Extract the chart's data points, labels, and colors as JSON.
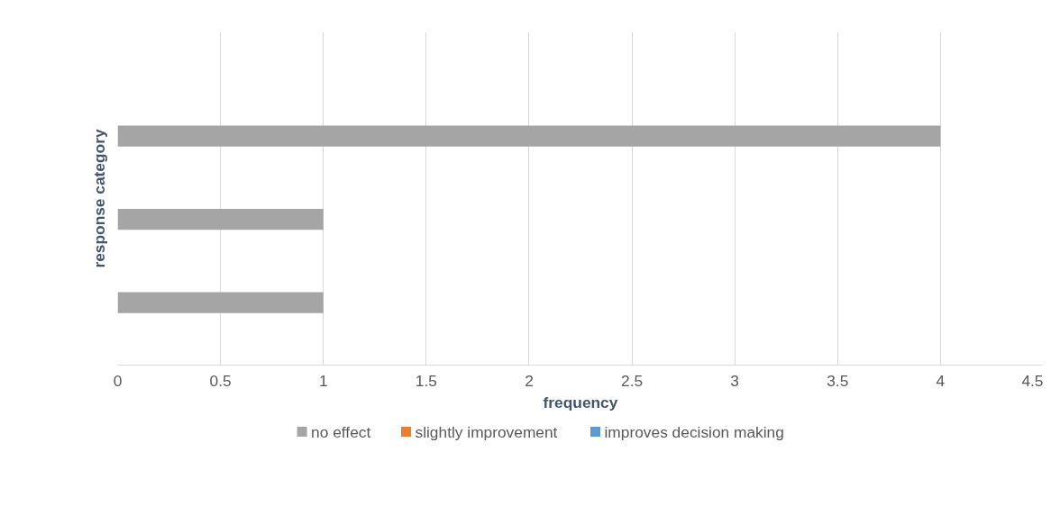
{
  "chart_data": {
    "type": "bar",
    "orientation": "horizontal",
    "xlabel": "frequency",
    "ylabel": "response category",
    "categories": [
      null,
      null,
      null
    ],
    "series": [
      {
        "name": "no effect",
        "color": "#a5a5a5",
        "values": [
          4,
          1,
          1
        ]
      },
      {
        "name": "slightly improvement",
        "color": "#ed7d31",
        "values": [
          0,
          0,
          0
        ]
      },
      {
        "name": "improves decision making",
        "color": "#5b9bd5",
        "values": [
          0,
          0,
          0
        ]
      }
    ],
    "xlim": [
      0,
      4.5
    ],
    "xticks": [
      0,
      0.5,
      1,
      1.5,
      2,
      2.5,
      3,
      3.5,
      4,
      4.5
    ],
    "grid": "x",
    "legend": "bottom",
    "tick_labels": "x"
  }
}
